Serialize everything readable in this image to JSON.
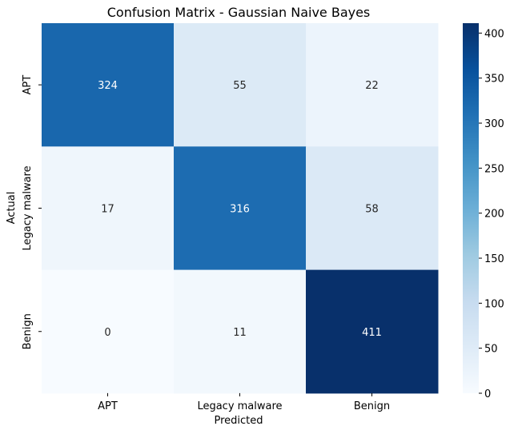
{
  "chart_data": {
    "type": "heatmap",
    "title": "Confusion Matrix - Gaussian Naive Bayes",
    "xlabel": "Predicted",
    "ylabel": "Actual",
    "x_categories": [
      "APT",
      "Legacy malware",
      "Benign"
    ],
    "y_categories": [
      "APT",
      "Legacy malware",
      "Benign"
    ],
    "values": [
      [
        324,
        55,
        22
      ],
      [
        17,
        316,
        58
      ],
      [
        0,
        11,
        411
      ]
    ],
    "colormap": "Blues",
    "colorbar": {
      "min": 0,
      "max": 411,
      "ticks": [
        0,
        50,
        100,
        150,
        200,
        250,
        300,
        350,
        400
      ]
    },
    "annotate": true
  }
}
